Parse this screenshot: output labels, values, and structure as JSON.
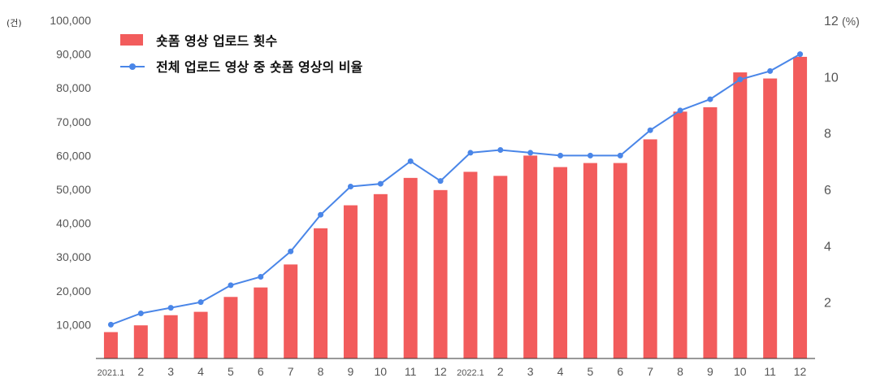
{
  "chart_data": {
    "type": "bar+line",
    "y_left_unit": "(건)",
    "y_right_unit": "(%)",
    "y_left_ticks": [
      "10,000",
      "20,000",
      "30,000",
      "40,000",
      "50,000",
      "60,000",
      "70,000",
      "80,000",
      "90,000",
      "100,000"
    ],
    "y_right_ticks": [
      "2",
      "4",
      "6",
      "8",
      "10",
      "12"
    ],
    "y_left_lim": [
      0,
      100000
    ],
    "y_right_lim": [
      0,
      12
    ],
    "categories": [
      "2021.1",
      "2",
      "3",
      "4",
      "5",
      "6",
      "7",
      "8",
      "9",
      "10",
      "11",
      "12",
      "2022.1",
      "2",
      "3",
      "4",
      "5",
      "6",
      "7",
      "8",
      "9",
      "10",
      "11",
      "12"
    ],
    "legend_position": "top-left",
    "series": [
      {
        "name": "숏폼 영상 업로드 횟수",
        "type": "bar",
        "axis": "left",
        "color": "#f25c5c",
        "values": [
          7800,
          9800,
          12800,
          13800,
          18200,
          21000,
          27800,
          38500,
          45300,
          48600,
          53400,
          49800,
          55200,
          54000,
          60000,
          56600,
          57800,
          57800,
          64800,
          73000,
          74300,
          84600,
          82800,
          89200
        ]
      },
      {
        "name": "전체 업로드 영상 중 숏폼 영상의 비율",
        "type": "line",
        "axis": "right",
        "color": "#4a86e8",
        "values": [
          1.2,
          1.6,
          1.8,
          2.0,
          2.6,
          2.9,
          3.8,
          5.1,
          6.1,
          6.2,
          7.0,
          6.3,
          7.3,
          7.4,
          7.3,
          7.2,
          7.2,
          7.2,
          8.1,
          8.8,
          9.2,
          9.9,
          10.2,
          10.8
        ]
      }
    ]
  }
}
